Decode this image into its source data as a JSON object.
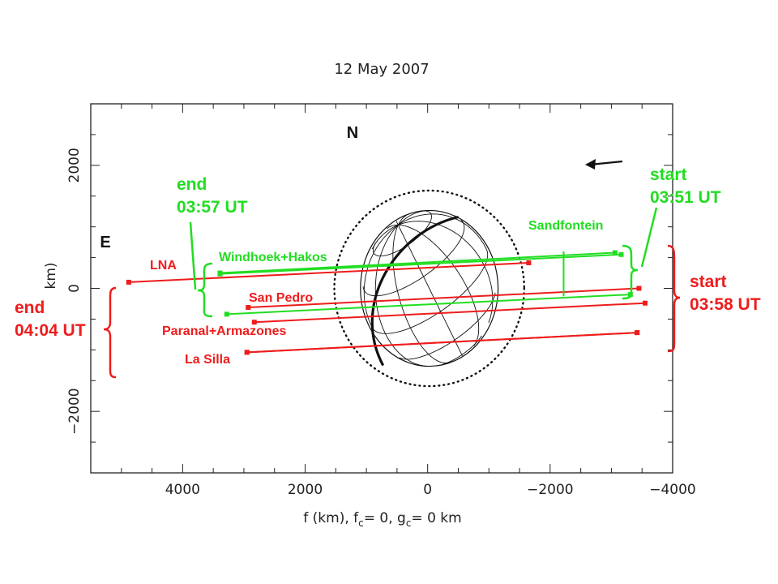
{
  "colors": {
    "red": "#ee1c1c",
    "green": "#22dd22",
    "axis": "#222222",
    "body": "#111111"
  },
  "chart_data": {
    "type": "scatter",
    "title": "12 May 2007",
    "xlabel": "f (km), f",
    "xlabel_sub_1": "c",
    "xlabel_mid": "= 0, g",
    "xlabel_sub_2": "c",
    "xlabel_end": "= 0 km",
    "ylabel": "km)",
    "xlim": [
      5500,
      -4000
    ],
    "ylim": [
      -3000,
      3000
    ],
    "x_ticks": [
      4000,
      2000,
      0,
      -2000,
      -4000
    ],
    "x_tick_labels": [
      "4000",
      "2000",
      "0",
      "−2000",
      "−4000"
    ],
    "y_ticks": [
      2000,
      0,
      -2000
    ],
    "y_tick_labels": [
      "2000",
      "0",
      "−2000"
    ],
    "directions": {
      "north": "N",
      "east": "E"
    },
    "motion_arrow_icon": "arrow-left-icon",
    "body": {
      "radius_km": 1550,
      "fresnel_radius_km": 1590
    },
    "chords": [
      {
        "name": "LNA",
        "color": "red",
        "x_start": -1650,
        "x_end": 4880,
        "y_start": 415,
        "y_end": 100
      },
      {
        "name": "San Pedro",
        "color": "red",
        "x_start": -3450,
        "x_end": 2930,
        "y_start": 0,
        "y_end": -310
      },
      {
        "name": "Paranal+Armazones",
        "color": "red",
        "x_start": -3550,
        "x_end": 2830,
        "y_start": -240,
        "y_end": -550
      },
      {
        "name": "",
        "color": "red",
        "x_start": -3420,
        "x_end": 2950,
        "y_start": -720,
        "y_end": -1040
      },
      {
        "name": "La Silla",
        "color": "red",
        "x_start": -3420,
        "x_end": 2950,
        "y_start": -720,
        "y_end": -1040
      },
      {
        "name": "Windhoek+Hakos",
        "color": "green",
        "x_start": -3060,
        "x_end": 3390,
        "y_start": 580,
        "y_end": 250
      },
      {
        "name": "",
        "color": "green",
        "x_start": -3160,
        "x_end": 3390,
        "y_start": 550,
        "y_end": 235
      },
      {
        "name": "",
        "color": "green",
        "x_start": -3310,
        "x_end": 3280,
        "y_start": -100,
        "y_end": -420
      }
    ],
    "sandfontein": {
      "name": "Sandfontein",
      "x": -2220,
      "y_top": 600,
      "y_bottom": -130
    },
    "annotations": {
      "green_end": [
        "end",
        "03:57 UT"
      ],
      "green_start": [
        "start",
        "03:51 UT"
      ],
      "red_end": [
        "end",
        "04:04 UT"
      ],
      "red_start": [
        "start",
        "03:58 UT"
      ]
    }
  }
}
